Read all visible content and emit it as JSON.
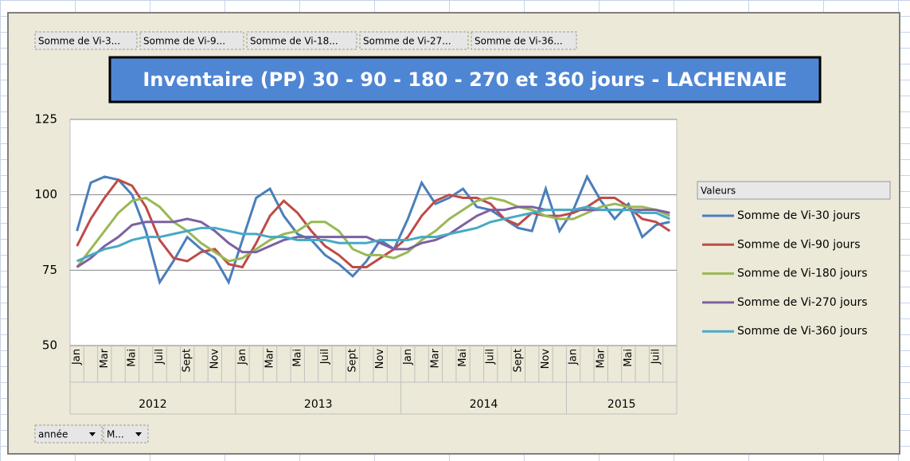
{
  "chart_data": {
    "type": "line",
    "field_buttons": [
      "Somme de Vi-3...",
      "Somme de Vi-9...",
      "Somme de Vi-18...",
      "Somme de Vi-27...",
      "Somme de Vi-36..."
    ],
    "axis_buttons": [
      "année",
      "M..."
    ],
    "title": "Inventaire (PP) 30 - 90 - 180 - 270 et 360 jours - LACHENAIE",
    "legend_title": "Valeurs",
    "categories": [
      "Jan",
      null,
      "Mar",
      null,
      "Mai",
      null,
      "Juil",
      null,
      "Sept",
      null,
      "Nov",
      null,
      "Jan",
      null,
      "Mar",
      null,
      "Mai",
      null,
      "Juil",
      null,
      "Sept",
      null,
      "Nov",
      null,
      "Jan",
      null,
      "Mar",
      null,
      "Mai",
      null,
      "Juil",
      null,
      "Sept",
      null,
      "Nov",
      null,
      "Jan",
      null,
      "Mar",
      null,
      "Mai",
      null,
      "Juil",
      null
    ],
    "years": [
      "2012",
      "2013",
      "2014",
      "2015"
    ],
    "ylim": [
      50,
      125
    ],
    "yticks": [
      50,
      75,
      100,
      125
    ],
    "grid": true,
    "series": [
      {
        "name": "Somme de Vi-30 jours",
        "color": "#4a7ebb",
        "values": [
          88,
          104,
          106,
          105,
          100,
          88,
          71,
          78,
          86,
          82,
          79,
          71,
          85,
          99,
          102,
          93,
          87,
          85,
          80,
          77,
          73,
          78,
          85,
          82,
          92,
          104,
          97,
          99,
          102,
          96,
          95,
          92,
          89,
          88,
          102,
          88,
          95,
          106,
          98,
          92,
          97,
          86,
          90,
          91
        ]
      },
      {
        "name": "Somme de Vi-90 jours",
        "color": "#be4b48",
        "values": [
          83,
          92,
          99,
          105,
          103,
          96,
          85,
          79,
          78,
          81,
          82,
          77,
          76,
          84,
          93,
          98,
          94,
          88,
          83,
          80,
          76,
          76,
          79,
          82,
          86,
          93,
          98,
          100,
          99,
          99,
          97,
          92,
          90,
          94,
          93,
          93,
          94,
          96,
          99,
          99,
          96,
          92,
          91,
          88
        ]
      },
      {
        "name": "Somme de Vi-180 jours",
        "color": "#98b954",
        "values": [
          76,
          82,
          88,
          94,
          98,
          99,
          96,
          91,
          88,
          84,
          81,
          78,
          79,
          82,
          85,
          87,
          88,
          91,
          91,
          88,
          82,
          80,
          80,
          79,
          81,
          85,
          88,
          92,
          95,
          98,
          99,
          98,
          96,
          95,
          93,
          92,
          92,
          94,
          96,
          97,
          96,
          96,
          95,
          93
        ]
      },
      {
        "name": "Somme de Vi-270 jours",
        "color": "#7d60a0",
        "values": [
          76,
          79,
          83,
          86,
          90,
          91,
          91,
          91,
          92,
          91,
          88,
          84,
          81,
          81,
          83,
          85,
          86,
          86,
          86,
          86,
          86,
          86,
          84,
          82,
          82,
          84,
          85,
          87,
          90,
          93,
          95,
          95,
          96,
          96,
          95,
          95,
          95,
          95,
          95,
          95,
          95,
          95,
          95,
          94
        ]
      },
      {
        "name": "Somme de Vi-360 jours",
        "color": "#46aac5",
        "values": [
          78,
          80,
          82,
          83,
          85,
          86,
          86,
          87,
          88,
          89,
          89,
          88,
          87,
          87,
          86,
          86,
          85,
          85,
          85,
          84,
          84,
          84,
          85,
          85,
          85,
          86,
          86,
          87,
          88,
          89,
          91,
          92,
          93,
          94,
          95,
          95,
          95,
          96,
          95,
          95,
          95,
          94,
          94,
          92
        ]
      }
    ]
  }
}
